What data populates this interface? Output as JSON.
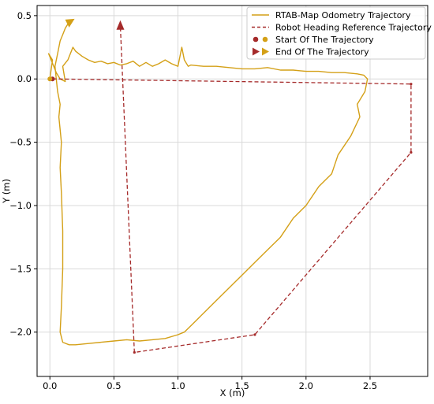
{
  "chart_data": {
    "type": "line",
    "xlabel": "X (m)",
    "ylabel": "Y (m)",
    "xlim": [
      -0.1,
      2.95
    ],
    "ylim": [
      -2.35,
      0.58
    ],
    "xticks": [
      0.0,
      0.5,
      1.0,
      1.5,
      2.0,
      2.5
    ],
    "yticks": [
      0.5,
      0.0,
      -0.5,
      -1.0,
      -1.5,
      -2.0
    ],
    "xtick_labels": [
      "0.0",
      "0.5",
      "1.0",
      "1.5",
      "2.0",
      "2.5"
    ],
    "ytick_labels": [
      "0.5",
      "0.0",
      "−0.5",
      "−1.0",
      "−1.5",
      "−2.0"
    ],
    "grid": true,
    "legend_position": "top-right",
    "legend": [
      {
        "label": "RTAB-Map Odometry Trajectory",
        "kind": "line",
        "color": "#d4a017"
      },
      {
        "label": "Robot Heading Reference Trajectory",
        "kind": "dashed-line",
        "color": "#a52a2a"
      },
      {
        "label": "Start Of The Trajectory",
        "kind": "markers",
        "colors": [
          "#a52a2a",
          "#d4a017"
        ],
        "marker": "circle"
      },
      {
        "label": "End Of The Trajectory",
        "kind": "markers",
        "colors": [
          "#a52a2a",
          "#d4a017"
        ],
        "marker": "triangle-right"
      }
    ],
    "series": [
      {
        "name": "RTAB-Map Odometry Trajectory",
        "color": "#d4a017",
        "style": "solid",
        "x": [
          0.0,
          0.02,
          -0.01,
          0.03,
          0.05,
          0.08,
          0.12,
          0.1,
          0.14,
          0.18,
          0.2,
          0.25,
          0.3,
          0.35,
          0.4,
          0.45,
          0.5,
          0.55,
          0.6,
          0.65,
          0.7,
          0.75,
          0.8,
          0.85,
          0.9,
          0.95,
          1.0,
          1.03,
          1.05,
          1.08,
          1.1,
          1.2,
          1.3,
          1.4,
          1.5,
          1.6,
          1.7,
          1.8,
          1.9,
          2.0,
          2.1,
          2.2,
          2.3,
          2.4,
          2.45,
          2.48,
          2.46,
          2.4,
          2.42,
          2.35,
          2.25,
          2.2,
          2.1,
          2.0,
          1.9,
          1.8,
          1.7,
          1.6,
          1.5,
          1.4,
          1.3,
          1.2,
          1.1,
          1.05,
          1.0,
          0.9,
          0.8,
          0.7,
          0.6,
          0.5,
          0.4,
          0.3,
          0.2,
          0.15,
          0.1,
          0.08,
          0.09,
          0.1,
          0.1,
          0.09,
          0.08,
          0.09,
          0.07,
          0.08,
          0.06,
          0.05,
          0.04,
          0.06,
          0.08,
          0.1,
          0.12,
          0.15
        ],
        "y": [
          0.0,
          0.15,
          0.2,
          0.1,
          0.05,
          0.0,
          -0.02,
          0.1,
          0.15,
          0.25,
          0.22,
          0.18,
          0.15,
          0.13,
          0.14,
          0.12,
          0.13,
          0.11,
          0.12,
          0.14,
          0.1,
          0.13,
          0.1,
          0.12,
          0.15,
          0.12,
          0.1,
          0.25,
          0.15,
          0.1,
          0.11,
          0.1,
          0.1,
          0.09,
          0.08,
          0.08,
          0.09,
          0.07,
          0.07,
          0.06,
          0.06,
          0.05,
          0.05,
          0.04,
          0.03,
          0.0,
          -0.1,
          -0.2,
          -0.3,
          -0.45,
          -0.6,
          -0.75,
          -0.85,
          -1.0,
          -1.1,
          -1.25,
          -1.35,
          -1.45,
          -1.55,
          -1.65,
          -1.75,
          -1.85,
          -1.95,
          -2.0,
          -2.02,
          -2.05,
          -2.06,
          -2.07,
          -2.06,
          -2.07,
          -2.08,
          -2.09,
          -2.1,
          -2.1,
          -2.08,
          -2.0,
          -1.8,
          -1.5,
          -1.2,
          -0.9,
          -0.7,
          -0.5,
          -0.3,
          -0.2,
          -0.1,
          0.0,
          0.1,
          0.2,
          0.3,
          0.35,
          0.4,
          0.45
        ]
      },
      {
        "name": "Robot Heading Reference Trajectory",
        "color": "#a52a2a",
        "style": "dashed",
        "x": [
          0.02,
          2.82,
          2.82,
          1.6,
          0.66,
          0.55
        ],
        "y": [
          0.0,
          -0.04,
          -0.58,
          -2.02,
          -2.16,
          0.42
        ]
      }
    ],
    "start_markers": [
      {
        "color": "#a52a2a",
        "x": 0.02,
        "y": 0.0
      },
      {
        "color": "#d4a017",
        "x": 0.0,
        "y": 0.0
      }
    ],
    "end_markers": [
      {
        "color": "#a52a2a",
        "x": 0.55,
        "y": 0.42,
        "direction": "up"
      },
      {
        "color": "#d4a017",
        "x": 0.15,
        "y": 0.45,
        "direction": "up-right"
      }
    ]
  }
}
